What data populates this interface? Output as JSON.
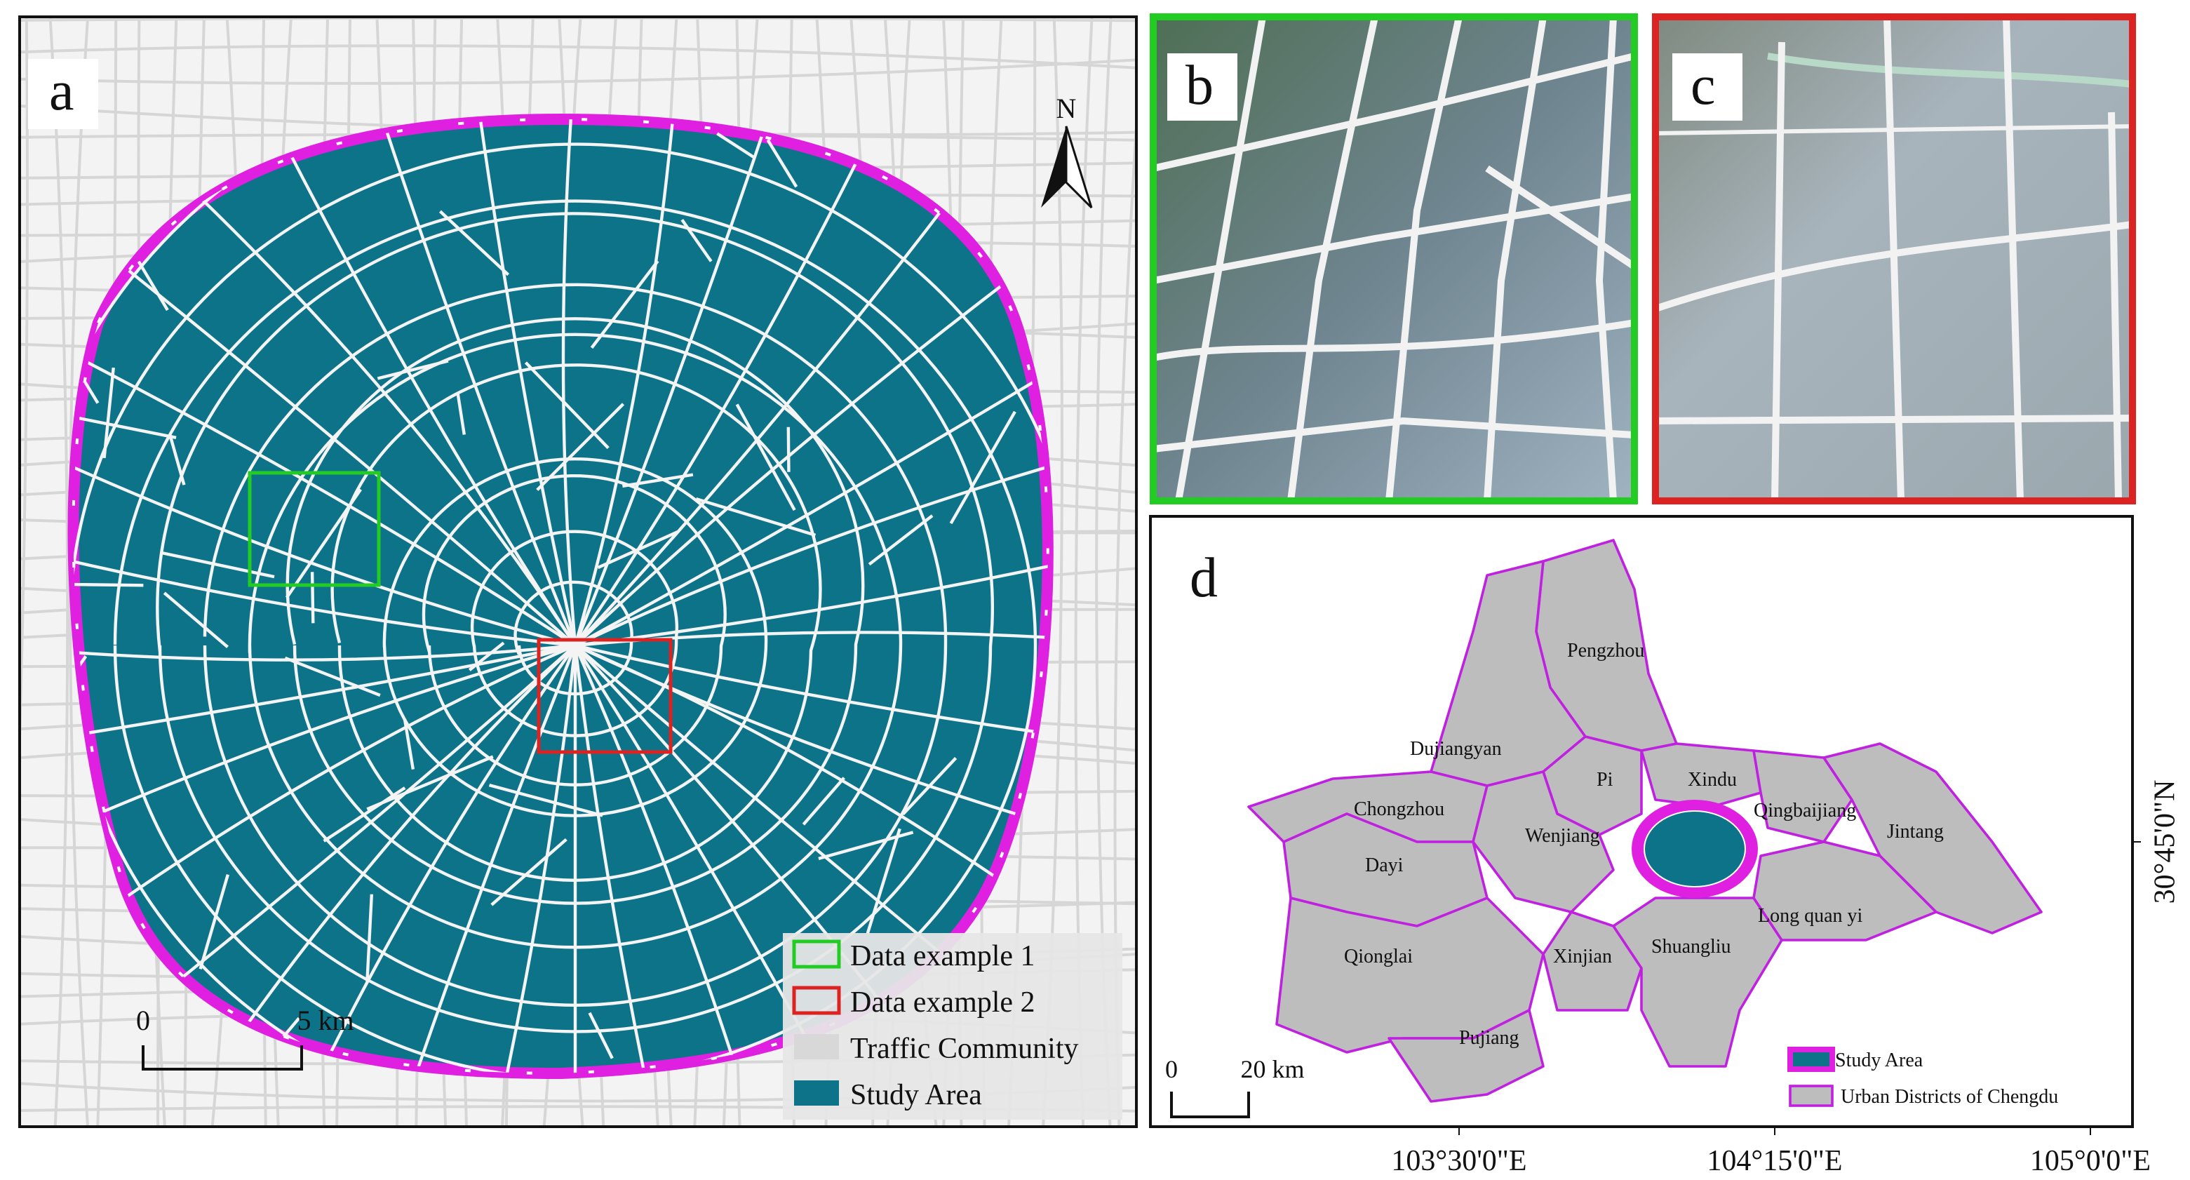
{
  "panels": {
    "a": {
      "label": "a",
      "north": "N",
      "scale": {
        "zero": "0",
        "end": "5 km"
      },
      "legend": [
        "Data example 1",
        "Data example 2",
        "Traffic Community",
        "Study Area"
      ]
    },
    "b": {
      "label": "b"
    },
    "c": {
      "label": "c"
    },
    "d": {
      "label": "d",
      "districts": [
        "Pengzhou",
        "Dujiangyan",
        "Pi",
        "Xindu",
        "Qingbaijiang",
        "Chongzhou",
        "Wenjiang",
        "Jintang",
        "Dayi",
        "Long quan yi",
        "Shuangliu",
        "Qionglai",
        "Xinjian",
        "Pujiang"
      ],
      "scale": {
        "zero": "0",
        "end": "20 km"
      },
      "legend": [
        "Study Area",
        "Urban Districts of Chengdu"
      ],
      "lat_label": "30°45'0\"N",
      "lon_labels": [
        "103°30'0\"E",
        "104°15'0\"E",
        "105°0'0\"E"
      ]
    }
  }
}
